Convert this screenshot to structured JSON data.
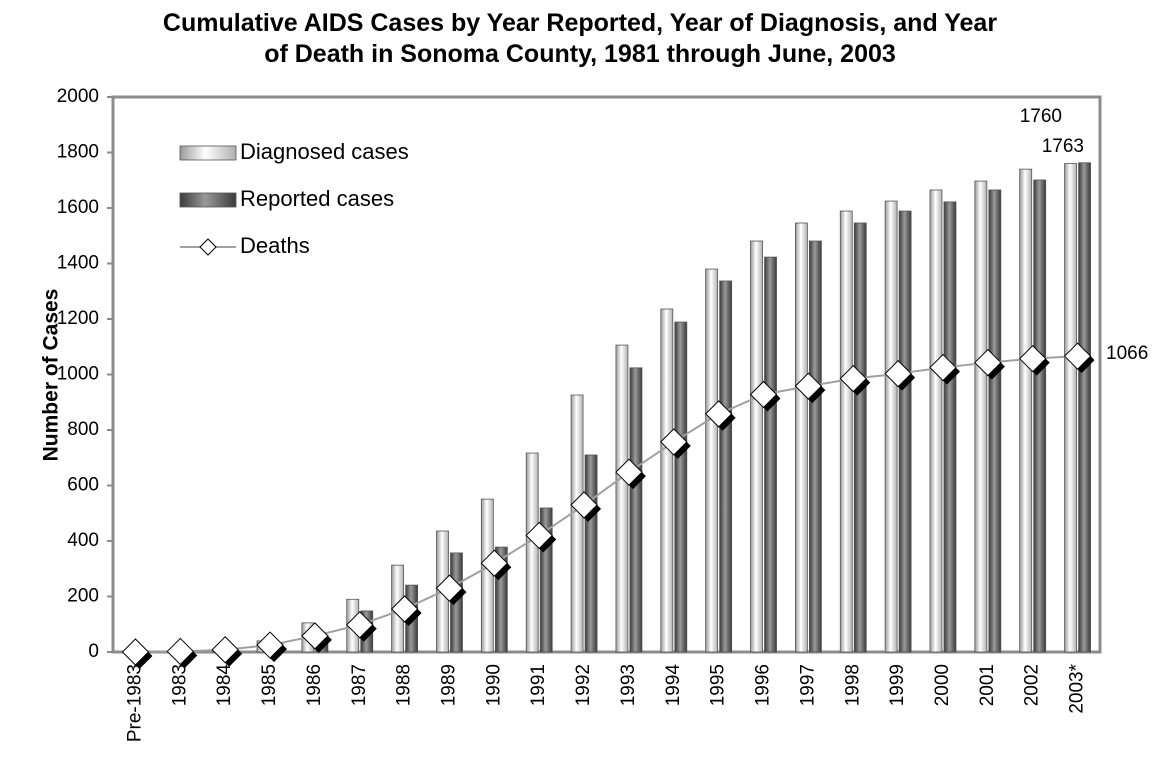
{
  "chart_data": {
    "type": "bar",
    "title": "Cumulative AIDS Cases by Year Reported, Year of Diagnosis, and Year of Death in Sonoma County, 1981 through June, 2003",
    "y_label": "Number of Cases",
    "categories": [
      "Pre-1983",
      "1983",
      "1984",
      "1985",
      "1986",
      "1987",
      "1988",
      "1989",
      "1990",
      "1991",
      "1992",
      "1993",
      "1994",
      "1995",
      "1996",
      "1997",
      "1998",
      "1999",
      "2000",
      "2001",
      "2002",
      "2003*"
    ],
    "series": [
      {
        "name": "Diagnosed cases",
        "type": "bar",
        "color": "#e2e2e2",
        "values": [
          0,
          2,
          5,
          40,
          105,
          190,
          313,
          436,
          551,
          717,
          926,
          1106,
          1236,
          1380,
          1481,
          1546,
          1589,
          1625,
          1665,
          1697,
          1740,
          1760
        ]
      },
      {
        "name": "Reported cases",
        "type": "bar",
        "color": "#6e6e6e",
        "values": [
          0,
          1,
          3,
          30,
          60,
          148,
          241,
          357,
          378,
          519,
          710,
          1024,
          1189,
          1337,
          1423,
          1481,
          1546,
          1589,
          1622,
          1665,
          1701,
          1763
        ]
      },
      {
        "name": "Deaths",
        "type": "line",
        "color": "#a0a0a0",
        "values": [
          0,
          2,
          8,
          25,
          58,
          98,
          155,
          230,
          320,
          420,
          530,
          648,
          757,
          858,
          928,
          958,
          985,
          1003,
          1025,
          1043,
          1057,
          1066
        ]
      }
    ],
    "ylim": [
      0,
      2000
    ],
    "yticks": [
      0,
      200,
      400,
      600,
      800,
      1000,
      1200,
      1400,
      1600,
      1800,
      2000
    ],
    "grid": false,
    "legend": "top-left"
  }
}
